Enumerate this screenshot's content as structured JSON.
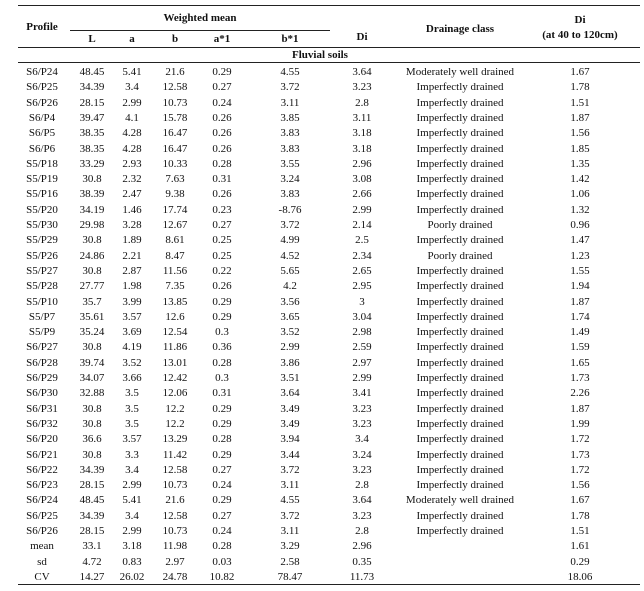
{
  "header": {
    "profile": "Profile",
    "weighted_mean": "Weighted mean",
    "columns": [
      "L",
      "a",
      "b",
      "a*1",
      "b*1"
    ],
    "di": "Di",
    "drainage": "Drainage class",
    "di40_title": "Di",
    "di40_sub": "(at 40 to 120cm)"
  },
  "section": "Fluvial soils",
  "rows": [
    [
      "S6/P24",
      "48.45",
      "5.41",
      "21.6",
      "0.29",
      "4.55",
      "3.64",
      "Moderately well drained",
      "1.67"
    ],
    [
      "S6/P25",
      "34.39",
      "3.4",
      "12.58",
      "0.27",
      "3.72",
      "3.23",
      "Imperfectly drained",
      "1.78"
    ],
    [
      "S6/P26",
      "28.15",
      "2.99",
      "10.73",
      "0.24",
      "3.11",
      "2.8",
      "Imperfectly drained",
      "1.51"
    ],
    [
      "S6/P4",
      "39.47",
      "4.1",
      "15.78",
      "0.26",
      "3.85",
      "3.11",
      "Imperfectly drained",
      "1.87"
    ],
    [
      "S6/P5",
      "38.35",
      "4.28",
      "16.47",
      "0.26",
      "3.83",
      "3.18",
      "Imperfectly drained",
      "1.56"
    ],
    [
      "S6/P6",
      "38.35",
      "4.28",
      "16.47",
      "0.26",
      "3.83",
      "3.18",
      "Imperfectly drained",
      "1.85"
    ],
    [
      "S5/P18",
      "33.29",
      "2.93",
      "10.33",
      "0.28",
      "3.55",
      "2.96",
      "Imperfectly drained",
      "1.35"
    ],
    [
      "S5/P19",
      "30.8",
      "2.32",
      "7.63",
      "0.31",
      "3.24",
      "3.08",
      "Imperfectly drained",
      "1.42"
    ],
    [
      "S5/P16",
      "38.39",
      "2.47",
      "9.38",
      "0.26",
      "3.83",
      "2.66",
      "Imperfectly drained",
      "1.06"
    ],
    [
      "S5/P20",
      "34.19",
      "1.46",
      "17.74",
      "0.23",
      "-8.76",
      "2.99",
      "Imperfectly drained",
      "1.32"
    ],
    [
      "S5/P30",
      "29.98",
      "3.28",
      "12.67",
      "0.27",
      "3.72",
      "2.14",
      "Poorly drained",
      "0.96"
    ],
    [
      "S5/P29",
      "30.8",
      "1.89",
      "8.61",
      "0.25",
      "4.99",
      "2.5",
      "Imperfectly drained",
      "1.47"
    ],
    [
      "S5/P26",
      "24.86",
      "2.21",
      "8.47",
      "0.25",
      "4.52",
      "2.34",
      "Poorly drained",
      "1.23"
    ],
    [
      "S5/P27",
      "30.8",
      "2.87",
      "11.56",
      "0.22",
      "5.65",
      "2.65",
      "Imperfectly drained",
      "1.55"
    ],
    [
      "S5/P28",
      "27.77",
      "1.98",
      "7.35",
      "0.26",
      "4.2",
      "2.95",
      "Imperfectly drained",
      "1.94"
    ],
    [
      "S5/P10",
      "35.7",
      "3.99",
      "13.85",
      "0.29",
      "3.56",
      "3",
      "Imperfectly drained",
      "1.87"
    ],
    [
      "S5/P7",
      "35.61",
      "3.57",
      "12.6",
      "0.29",
      "3.65",
      "3.04",
      "Imperfectly drained",
      "1.74"
    ],
    [
      "S5/P9",
      "35.24",
      "3.69",
      "12.54",
      "0.3",
      "3.52",
      "2.98",
      "Imperfectly drained",
      "1.49"
    ],
    [
      "S6/P27",
      "30.8",
      "4.19",
      "11.86",
      "0.36",
      "2.99",
      "2.59",
      "Imperfectly drained",
      "1.59"
    ],
    [
      "S6/P28",
      "39.74",
      "3.52",
      "13.01",
      "0.28",
      "3.86",
      "2.97",
      "Imperfectly drained",
      "1.65"
    ],
    [
      "S6/P29",
      "34.07",
      "3.66",
      "12.42",
      "0.3",
      "3.51",
      "2.99",
      "Imperfectly drained",
      "1.73"
    ],
    [
      "S6/P30",
      "32.88",
      "3.5",
      "12.06",
      "0.31",
      "3.64",
      "3.41",
      "Imperfectly drained",
      "2.26"
    ],
    [
      "S6/P31",
      "30.8",
      "3.5",
      "12.2",
      "0.29",
      "3.49",
      "3.23",
      "Imperfectly drained",
      "1.87"
    ],
    [
      "S6/P32",
      "30.8",
      "3.5",
      "12.2",
      "0.29",
      "3.49",
      "3.23",
      "Imperfectly drained",
      "1.99"
    ],
    [
      "S6/P20",
      "36.6",
      "3.57",
      "13.29",
      "0.28",
      "3.94",
      "3.4",
      "Imperfectly drained",
      "1.72"
    ],
    [
      "S6/P21",
      "30.8",
      "3.3",
      "11.42",
      "0.29",
      "3.44",
      "3.24",
      "Imperfectly drained",
      "1.73"
    ],
    [
      "S6/P22",
      "34.39",
      "3.4",
      "12.58",
      "0.27",
      "3.72",
      "3.23",
      "Imperfectly drained",
      "1.72"
    ],
    [
      "S6/P23",
      "28.15",
      "2.99",
      "10.73",
      "0.24",
      "3.11",
      "2.8",
      "Imperfectly drained",
      "1.56"
    ],
    [
      "S6/P24",
      "48.45",
      "5.41",
      "21.6",
      "0.29",
      "4.55",
      "3.64",
      "Moderately well drained",
      "1.67"
    ],
    [
      "S6/P25",
      "34.39",
      "3.4",
      "12.58",
      "0.27",
      "3.72",
      "3.23",
      "Imperfectly drained",
      "1.78"
    ],
    [
      "S6/P26",
      "28.15",
      "2.99",
      "10.73",
      "0.24",
      "3.11",
      "2.8",
      "Imperfectly drained",
      "1.51"
    ]
  ],
  "summary": [
    {
      "label": "mean",
      "values": [
        "33.1",
        "3.18",
        "11.98",
        "0.28",
        "3.29",
        "2.96"
      ],
      "di40": "1.61"
    },
    {
      "label": "sd",
      "values": [
        "4.72",
        "0.83",
        "2.97",
        "0.03",
        "2.58",
        "0.35"
      ],
      "di40": "0.29"
    },
    {
      "label": "CV",
      "values": [
        "14.27",
        "26.02",
        "24.78",
        "10.82",
        "78.47",
        "11.73"
      ],
      "di40": "18.06"
    }
  ]
}
